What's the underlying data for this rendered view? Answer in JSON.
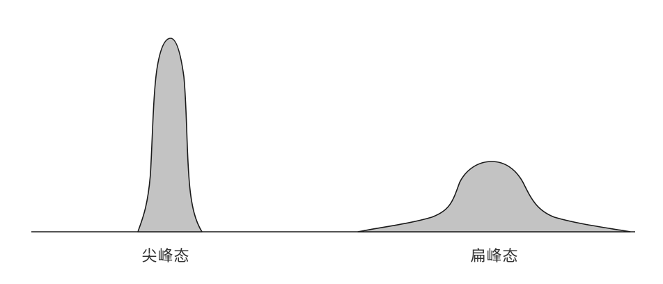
{
  "diagram": {
    "colors": {
      "fill": "#c3c3c3",
      "outline": "#1a1a1a",
      "background": "#ffffff"
    },
    "peaks": [
      {
        "id": "sharp",
        "label": "尖峰态",
        "shape": "tall-narrow"
      },
      {
        "id": "flat",
        "label": "扁峰态",
        "shape": "low-wide"
      }
    ]
  }
}
